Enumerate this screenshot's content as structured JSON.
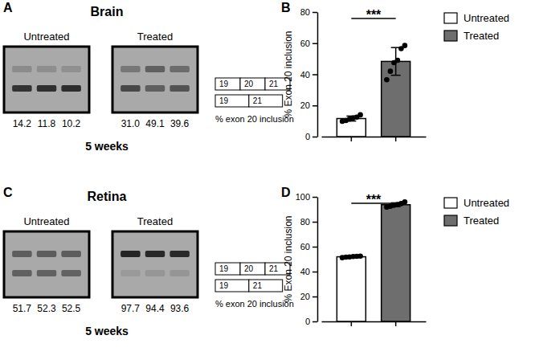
{
  "chart_data": [
    {
      "type": "gel",
      "label": "A",
      "title": "Brain",
      "subtitle": "5 weeks",
      "caption": "% exon 20 inclusion",
      "bands": [
        [
          "19",
          "20",
          "21"
        ],
        [
          "19",
          "21"
        ]
      ],
      "series": [
        {
          "name": "Untreated",
          "values": [
            14.2,
            11.8,
            10.2
          ],
          "value_labels": [
            "14.2",
            "11.8",
            "10.2"
          ]
        },
        {
          "name": "Treated",
          "values": [
            31.0,
            49.1,
            39.6
          ],
          "value_labels": [
            "31.0",
            "49.1",
            "39.6"
          ]
        }
      ]
    },
    {
      "type": "bar",
      "label": "B",
      "y_label": "% Exon 20 inclusion",
      "significance": "***",
      "categories": [
        "Untreated",
        "Treated"
      ],
      "values": [
        11.6,
        48.3
      ],
      "errors": [
        1.6,
        8.9
      ],
      "points": [
        [
          9.8,
          10.3,
          11.2,
          12.0,
          12.5,
          14.0
        ],
        [
          36.5,
          42.0,
          47.5,
          49.0,
          56.5,
          58.5
        ]
      ],
      "colors": [
        "#ffffff",
        "#6e6e6e"
      ],
      "legend": "right",
      "tick_labels": "y",
      "ylim": [
        0,
        80
      ],
      "yticks": [
        0,
        20,
        40,
        60,
        80
      ]
    },
    {
      "type": "gel",
      "label": "C",
      "title": "Retina",
      "subtitle": "5 weeks",
      "caption": "% exon 20 inclusion",
      "bands": [
        [
          "19",
          "20",
          "21"
        ],
        [
          "19",
          "21"
        ]
      ],
      "series": [
        {
          "name": "Untreated",
          "values": [
            51.7,
            52.3,
            52.5
          ],
          "value_labels": [
            "51.7",
            "52.3",
            "52.5"
          ]
        },
        {
          "name": "Treated",
          "values": [
            97.7,
            94.4,
            93.6
          ],
          "value_labels": [
            "97.7",
            "94.4",
            "93.6"
          ]
        }
      ]
    },
    {
      "type": "bar",
      "label": "D",
      "y_label": "% Exon 20 inclusion",
      "significance": "***",
      "categories": [
        "Untreated",
        "Treated"
      ],
      "values": [
        51.9,
        93.7
      ],
      "errors": [
        0.5,
        1.5
      ],
      "points": [
        [
          51.2,
          51.6,
          51.8,
          52.1,
          52.3,
          52.4
        ],
        [
          91.8,
          92.5,
          93.2,
          93.8,
          94.6,
          96.0
        ]
      ],
      "colors": [
        "#ffffff",
        "#6e6e6e"
      ],
      "legend": "right",
      "tick_labels": "y",
      "ylim": [
        0,
        100
      ],
      "yticks": [
        0,
        20,
        40,
        60,
        80,
        100
      ]
    }
  ]
}
